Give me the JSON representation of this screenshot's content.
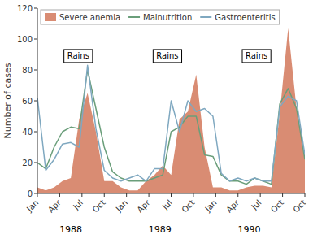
{
  "chart_data": {
    "type": "line",
    "ylabel": "Number of cases",
    "x": [
      0,
      1.125,
      2.25,
      3.375,
      4.5,
      5.625,
      6.75,
      7.875,
      9,
      10.125,
      11.25,
      12.375,
      13.5,
      14.625,
      15.75,
      16.875,
      18,
      19.125,
      20.25,
      21.375,
      22.5,
      23.625,
      24.75,
      25.875,
      27,
      28.125,
      29.25,
      30.375,
      31.5,
      32.625,
      33.75,
      34.875,
      36
    ],
    "xlim": [
      0,
      36
    ],
    "xticks": [
      {
        "value": 0,
        "label": "Jan"
      },
      {
        "value": 3,
        "label": "Apr"
      },
      {
        "value": 6,
        "label": "Jul"
      },
      {
        "value": 9,
        "label": "Oct"
      },
      {
        "value": 12,
        "label": "Jan"
      },
      {
        "value": 15,
        "label": "Apr"
      },
      {
        "value": 18,
        "label": "Jul"
      },
      {
        "value": 21,
        "label": "Oct"
      },
      {
        "value": 24,
        "label": "Jan"
      },
      {
        "value": 27,
        "label": "Apr"
      },
      {
        "value": 30,
        "label": "Jul"
      },
      {
        "value": 33,
        "label": "Oct"
      },
      {
        "value": 36,
        "label": "Oct"
      }
    ],
    "ylim": [
      0,
      120
    ],
    "yticks": [
      0,
      20,
      40,
      60,
      80,
      100,
      120
    ],
    "grid": false,
    "legend": "upper left",
    "series": [
      {
        "name": "Severe anemia",
        "type": "area",
        "color": "#cc6644",
        "values": [
          4,
          2,
          4,
          8,
          10,
          48,
          65,
          40,
          8,
          8,
          4,
          2,
          2,
          8,
          12,
          18,
          12,
          48,
          53,
          77,
          30,
          4,
          4,
          2,
          2,
          4,
          5,
          5,
          4,
          52,
          107,
          55,
          25
        ]
      },
      {
        "name": "Malnutrition",
        "type": "line",
        "color": "#6a9e7a",
        "values": [
          20,
          16,
          30,
          40,
          43,
          42,
          80,
          55,
          30,
          14,
          10,
          8,
          8,
          8,
          10,
          12,
          40,
          43,
          50,
          50,
          25,
          24,
          12,
          8,
          8,
          6,
          10,
          8,
          6,
          58,
          68,
          55,
          22
        ]
      },
      {
        "name": "Gastroenteritis",
        "type": "line",
        "color": "#7fa8c0",
        "values": [
          62,
          15,
          22,
          32,
          33,
          30,
          83,
          42,
          15,
          10,
          8,
          10,
          12,
          8,
          16,
          16,
          60,
          40,
          60,
          53,
          55,
          50,
          13,
          8,
          10,
          8,
          10,
          8,
          8,
          56,
          63,
          60,
          25
        ]
      }
    ],
    "annotations": [
      {
        "text": "Rains",
        "x": 5.5,
        "y": 89
      },
      {
        "text": "Rains",
        "x": 17.5,
        "y": 89
      },
      {
        "text": "Rains",
        "x": 29.5,
        "y": 89
      },
      {
        "text": "1988",
        "x": 4.5
      },
      {
        "text": "1989",
        "x": 16.5
      },
      {
        "text": "1990",
        "x": 28.5
      }
    ]
  }
}
